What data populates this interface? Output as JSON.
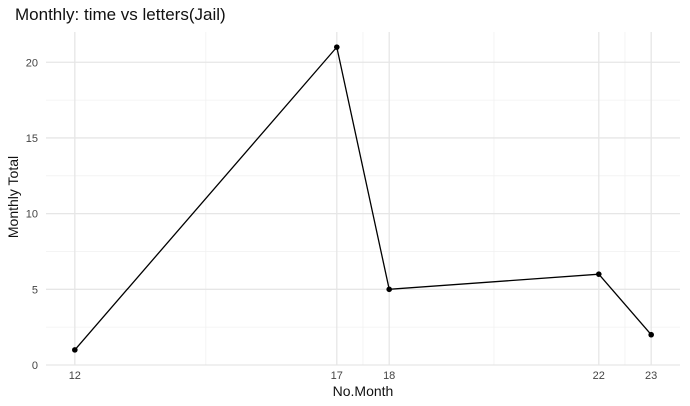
{
  "chart_data": {
    "type": "line",
    "title": "Monthly: time vs letters(Jail)",
    "xlabel": "No.Month",
    "ylabel": "Monthly Total",
    "x": [
      12,
      17,
      18,
      22,
      23
    ],
    "y": [
      1,
      21,
      5,
      6,
      2
    ],
    "x_ticks": [
      12,
      17,
      18,
      22,
      23
    ],
    "y_ticks": [
      0,
      5,
      10,
      15,
      20
    ],
    "xlim": [
      11.45,
      23.55
    ],
    "ylim": [
      0,
      22
    ],
    "grid": true,
    "legend": "none"
  },
  "colors": {
    "line": "#000000",
    "grid": "#e6e6e6",
    "background": "#ffffff"
  }
}
